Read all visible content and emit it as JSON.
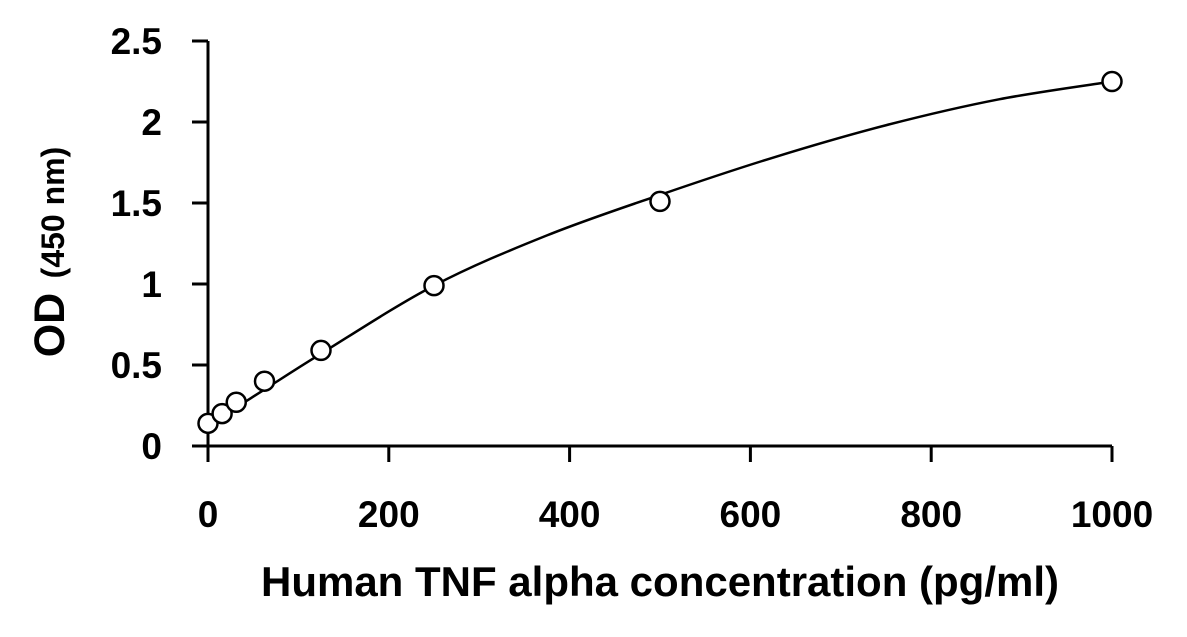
{
  "chart_data": {
    "type": "scatter",
    "title": "",
    "xlabel": "Human TNF alpha concentration (pg/ml)",
    "ylabel_main": "OD",
    "ylabel_sub": "(450 nm)",
    "xlim": [
      0,
      1000
    ],
    "ylim": [
      0,
      2.5
    ],
    "x_ticks": [
      0,
      200,
      400,
      600,
      800,
      1000
    ],
    "x_tick_labels": [
      "0",
      "200",
      "400",
      "600",
      "800",
      "1000"
    ],
    "y_ticks": [
      0,
      0.5,
      1,
      1.5,
      2,
      2.5
    ],
    "y_tick_labels": [
      "0",
      "0.5",
      "1",
      "1.5",
      "2",
      "2.5"
    ],
    "grid": false,
    "legend": "none",
    "series": [
      {
        "x": [
          0,
          15.6,
          31.25,
          62.5,
          125,
          250,
          500,
          1000
        ],
        "y": [
          0.14,
          0.2,
          0.27,
          0.4,
          0.59,
          0.99,
          1.51,
          2.25
        ],
        "marker": "open-circle",
        "color": "#000000"
      }
    ],
    "fit_curve": {
      "type": "smooth-line",
      "x": [
        0,
        15,
        30,
        60,
        125,
        250,
        375,
        500,
        625,
        750,
        875,
        1000
      ],
      "y": [
        0.16,
        0.195,
        0.235,
        0.34,
        0.57,
        0.99,
        1.3,
        1.55,
        1.78,
        1.98,
        2.14,
        2.25
      ],
      "color": "#000000"
    }
  }
}
